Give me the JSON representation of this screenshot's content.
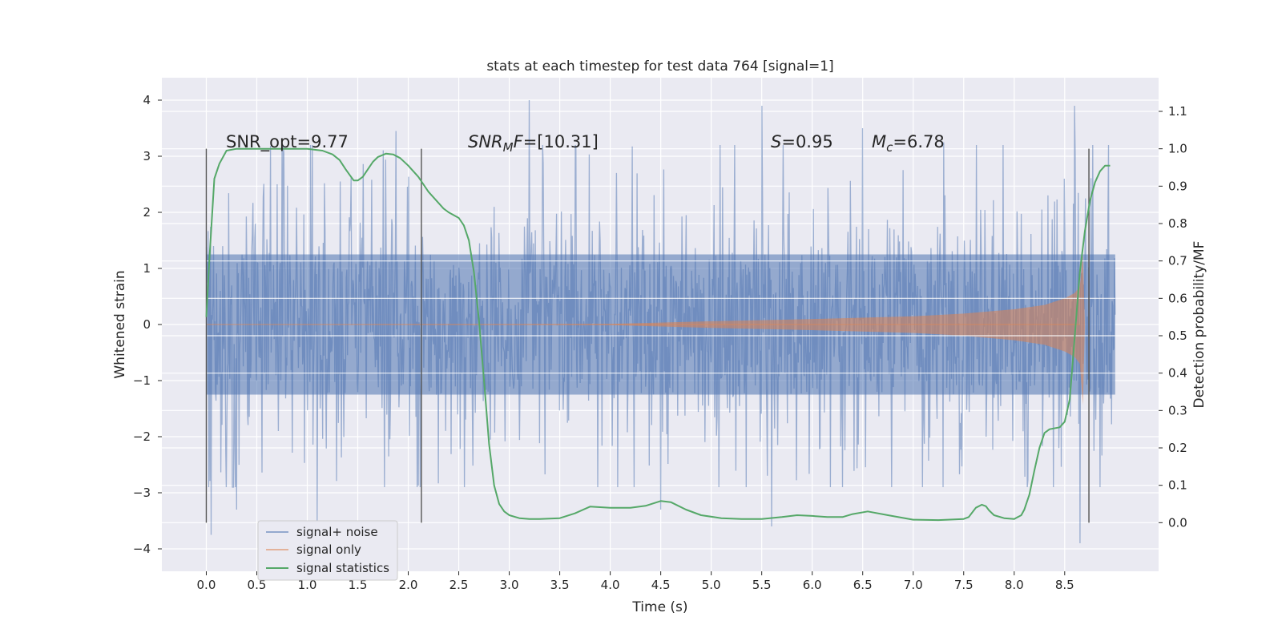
{
  "chart_data": {
    "type": "line",
    "title": "stats at each timestep for test data 764 [signal=1]",
    "xlabel": "Time (s)",
    "ylabel": "Whitened strain",
    "y2label": "Detection probability/MF",
    "xlim": [
      -0.44,
      9.43
    ],
    "ylim": [
      -4.4,
      4.4
    ],
    "y2lim": [
      -0.13,
      1.19
    ],
    "xticks": [
      "0.0",
      "0.5",
      "1.0",
      "1.5",
      "2.0",
      "2.5",
      "3.0",
      "3.5",
      "4.0",
      "4.5",
      "5.0",
      "5.5",
      "6.0",
      "6.5",
      "7.0",
      "7.5",
      "8.0",
      "8.5"
    ],
    "yticks": [
      "4",
      "3",
      "2",
      "1",
      "0",
      "−1",
      "−2",
      "−3",
      "−4"
    ],
    "y2ticks": [
      "1.1",
      "1.0",
      "0.9",
      "0.8",
      "0.7",
      "0.6",
      "0.5",
      "0.4",
      "0.3",
      "0.2",
      "0.1",
      "0.0"
    ],
    "grid": true,
    "legend": {
      "position": "lower-left",
      "entries": [
        "signal+ noise",
        "signal only",
        "signal statistics"
      ]
    },
    "annotations": {
      "snr_opt": "SNR_opt=9.77",
      "snr_mf_sym": "SNR",
      "snr_mf_sub": "M",
      "snr_mf_sym2": "F",
      "snr_mf_val": "=[10.31]",
      "s_sym": "S",
      "s_val": "=0.95",
      "mc_sym": "M",
      "mc_sub": "c",
      "mc_val": "=6.78"
    },
    "markers_x": [
      0.0,
      2.13,
      8.74
    ],
    "series": [
      {
        "name": "signal+ noise",
        "color": "#4c72b0",
        "x_range": [
          0.0,
          9.0
        ],
        "core_amplitude": 1.25,
        "typical_peak": 2.3,
        "extremes": [
          [
            0.7,
            2.5
          ],
          [
            1.1,
            -3.5
          ],
          [
            3.2,
            4.0
          ],
          [
            5.5,
            3.9
          ],
          [
            5.6,
            -3.6
          ],
          [
            6.5,
            3.5
          ],
          [
            8.6,
            3.9
          ],
          [
            8.65,
            -3.9
          ],
          [
            1.88,
            3.45
          ],
          [
            4.5,
            -3.3
          ],
          [
            7.3,
            3.25
          ],
          [
            0.05,
            -3.75
          ],
          [
            0.3,
            -3.3
          ]
        ]
      },
      {
        "name": "signal only",
        "color": "#dd8452",
        "x_range": [
          0.0,
          9.0
        ],
        "chirp_envelope": [
          [
            0.0,
            0.0
          ],
          [
            4.0,
            0.01
          ],
          [
            5.0,
            0.06
          ],
          [
            6.0,
            0.1
          ],
          [
            7.0,
            0.15
          ],
          [
            7.5,
            0.2
          ],
          [
            8.0,
            0.28
          ],
          [
            8.3,
            0.36
          ],
          [
            8.5,
            0.48
          ],
          [
            8.6,
            0.58
          ],
          [
            8.65,
            0.7
          ],
          [
            8.68,
            1.3
          ],
          [
            8.7,
            0.0
          ]
        ]
      },
      {
        "name": "signal statistics",
        "color": "#55a868",
        "axis": "right",
        "x": [
          0.0,
          0.03,
          0.08,
          0.13,
          0.2,
          0.3,
          0.5,
          0.8,
          1.0,
          1.15,
          1.25,
          1.32,
          1.38,
          1.42,
          1.46,
          1.5,
          1.55,
          1.6,
          1.65,
          1.7,
          1.78,
          1.85,
          1.92,
          2.0,
          2.05,
          2.1,
          2.15,
          2.2,
          2.25,
          2.3,
          2.35,
          2.4,
          2.5,
          2.55,
          2.6,
          2.65,
          2.7,
          2.75,
          2.8,
          2.85,
          2.9,
          2.95,
          3.0,
          3.1,
          3.2,
          3.3,
          3.5,
          3.65,
          3.8,
          4.0,
          4.2,
          4.35,
          4.5,
          4.6,
          4.75,
          4.9,
          5.1,
          5.3,
          5.5,
          5.7,
          5.85,
          6.0,
          6.15,
          6.3,
          6.4,
          6.55,
          6.75,
          7.0,
          7.25,
          7.5,
          7.55,
          7.62,
          7.68,
          7.72,
          7.75,
          7.8,
          7.9,
          8.0,
          8.07,
          8.1,
          8.15,
          8.2,
          8.25,
          8.3,
          8.35,
          8.45,
          8.5,
          8.55,
          8.6,
          8.65,
          8.7,
          8.75,
          8.8,
          8.85,
          8.9,
          8.95
        ],
        "values": [
          0.55,
          0.7,
          0.92,
          0.96,
          0.995,
          1.0,
          1.0,
          1.0,
          1.0,
          0.995,
          0.985,
          0.97,
          0.945,
          0.93,
          0.915,
          0.915,
          0.925,
          0.945,
          0.965,
          0.978,
          0.987,
          0.985,
          0.975,
          0.955,
          0.94,
          0.925,
          0.905,
          0.885,
          0.87,
          0.855,
          0.84,
          0.83,
          0.815,
          0.795,
          0.755,
          0.67,
          0.54,
          0.38,
          0.21,
          0.1,
          0.05,
          0.03,
          0.02,
          0.012,
          0.01,
          0.01,
          0.012,
          0.025,
          0.043,
          0.04,
          0.04,
          0.045,
          0.058,
          0.055,
          0.035,
          0.02,
          0.012,
          0.01,
          0.01,
          0.015,
          0.02,
          0.018,
          0.015,
          0.015,
          0.023,
          0.03,
          0.02,
          0.008,
          0.007,
          0.01,
          0.015,
          0.04,
          0.048,
          0.044,
          0.033,
          0.02,
          0.012,
          0.01,
          0.02,
          0.035,
          0.075,
          0.14,
          0.2,
          0.24,
          0.25,
          0.255,
          0.27,
          0.33,
          0.5,
          0.67,
          0.78,
          0.86,
          0.91,
          0.94,
          0.955,
          0.955
        ]
      }
    ]
  }
}
